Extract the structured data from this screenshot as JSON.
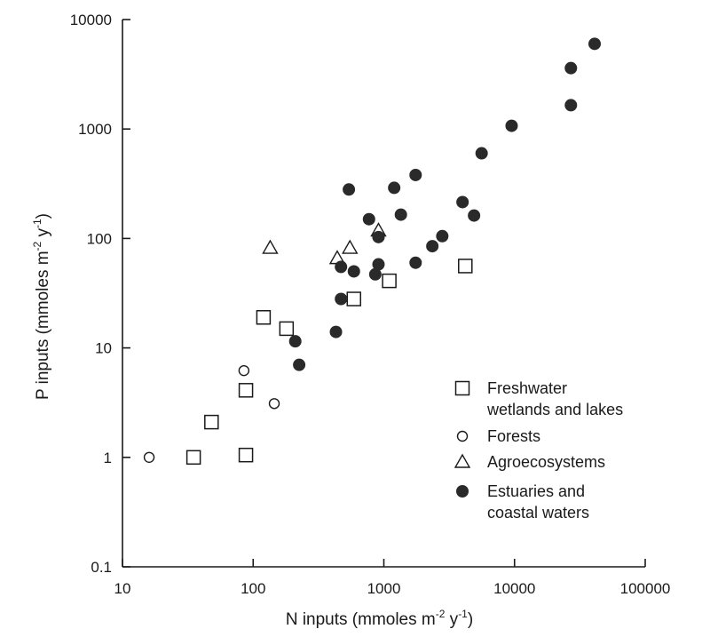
{
  "chart_data": {
    "type": "scatter",
    "xlabel_parts": [
      "N inputs (mmoles m",
      "-2",
      " y",
      "-1",
      ")"
    ],
    "ylabel_parts": [
      "P inputs (mmoles m",
      "-2",
      " y",
      "-1",
      ")"
    ],
    "x_scale": "log",
    "y_scale": "log",
    "xlim": [
      10,
      100000
    ],
    "ylim": [
      0.1,
      10000
    ],
    "x_ticks": [
      "10",
      "100",
      "1000",
      "10000",
      "100000"
    ],
    "y_ticks": [
      "0.1",
      "1",
      "10",
      "100",
      "1000",
      "10000"
    ],
    "grid": false,
    "legend_position": "lower-right",
    "series": [
      {
        "name_lines": [
          "Freshwater",
          "wetlands and lakes"
        ],
        "marker": "open-square",
        "points": [
          [
            35,
            1.0
          ],
          [
            48,
            2.1
          ],
          [
            88,
            1.05
          ],
          [
            88,
            4.1
          ],
          [
            120,
            19
          ],
          [
            180,
            15
          ],
          [
            590,
            28
          ],
          [
            1100,
            41
          ],
          [
            4200,
            56
          ]
        ]
      },
      {
        "name_lines": [
          "Forests"
        ],
        "marker": "open-circle",
        "points": [
          [
            16,
            1.0
          ],
          [
            85,
            6.2
          ],
          [
            145,
            3.1
          ]
        ]
      },
      {
        "name_lines": [
          "Agroecosystems"
        ],
        "marker": "open-triangle",
        "points": [
          [
            135,
            82
          ],
          [
            440,
            66
          ],
          [
            550,
            82
          ],
          [
            910,
            118
          ]
        ]
      },
      {
        "name_lines": [
          "Estuaries and",
          "coastal waters"
        ],
        "marker": "filled-circle",
        "points": [
          [
            210,
            11.5
          ],
          [
            225,
            7.0
          ],
          [
            430,
            14
          ],
          [
            470,
            28
          ],
          [
            470,
            55
          ],
          [
            540,
            280
          ],
          [
            590,
            50
          ],
          [
            770,
            150
          ],
          [
            860,
            47
          ],
          [
            910,
            58
          ],
          [
            910,
            103
          ],
          [
            1200,
            290
          ],
          [
            1350,
            165
          ],
          [
            1750,
            380
          ],
          [
            1750,
            60
          ],
          [
            2350,
            85
          ],
          [
            2800,
            105
          ],
          [
            4000,
            215
          ],
          [
            4900,
            162
          ],
          [
            5600,
            600
          ],
          [
            9500,
            1070
          ],
          [
            27000,
            1650
          ],
          [
            27000,
            3600
          ],
          [
            41000,
            6000
          ]
        ]
      }
    ]
  }
}
